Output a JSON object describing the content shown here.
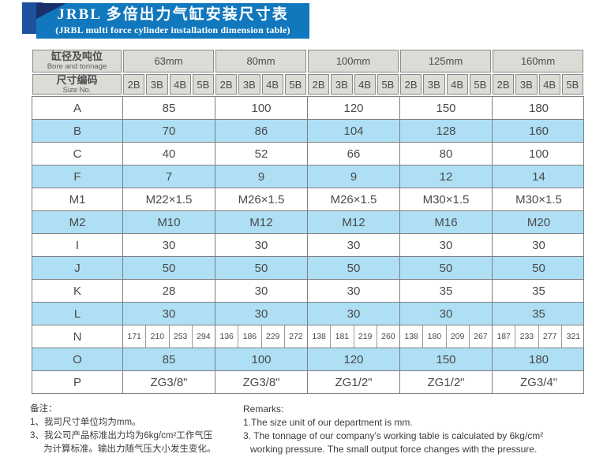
{
  "title": {
    "zh": "JRBL 多倍出力气缸安装尺寸表",
    "en": "(JRBL multi force cylinder installation dimension table)"
  },
  "table": {
    "corner_zh": "缸径及吨位",
    "corner_en": "Bore and tonnage",
    "size_no_zh": "尺寸编码",
    "size_no_en": "Size No.",
    "bores": [
      "63mm",
      "80mm",
      "100mm",
      "125mm",
      "160mm"
    ],
    "size_codes": [
      "2B",
      "3B",
      "4B",
      "5B"
    ],
    "rows": [
      {
        "label": "A",
        "type": "merged",
        "blue": false,
        "values": [
          "85",
          "100",
          "120",
          "150",
          "180"
        ]
      },
      {
        "label": "B",
        "type": "merged",
        "blue": true,
        "values": [
          "70",
          "86",
          "104",
          "128",
          "160"
        ]
      },
      {
        "label": "C",
        "type": "merged",
        "blue": false,
        "values": [
          "40",
          "52",
          "66",
          "80",
          "100"
        ]
      },
      {
        "label": "F",
        "type": "merged",
        "blue": true,
        "values": [
          "7",
          "9",
          "9",
          "12",
          "14"
        ]
      },
      {
        "label": "M1",
        "type": "merged",
        "blue": false,
        "values": [
          "M22×1.5",
          "M26×1.5",
          "M26×1.5",
          "M30×1.5",
          "M30×1.5"
        ]
      },
      {
        "label": "M2",
        "type": "merged",
        "blue": true,
        "values": [
          "M10",
          "M12",
          "M12",
          "M16",
          "M20"
        ]
      },
      {
        "label": "I",
        "type": "merged",
        "blue": false,
        "values": [
          "30",
          "30",
          "30",
          "30",
          "30"
        ]
      },
      {
        "label": "J",
        "type": "merged",
        "blue": true,
        "values": [
          "50",
          "50",
          "50",
          "50",
          "50"
        ]
      },
      {
        "label": "K",
        "type": "merged",
        "blue": false,
        "values": [
          "28",
          "30",
          "30",
          "35",
          "35"
        ]
      },
      {
        "label": "L",
        "type": "merged",
        "blue": true,
        "values": [
          "30",
          "30",
          "30",
          "30",
          "35"
        ]
      },
      {
        "label": "N",
        "type": "per-code",
        "blue": false,
        "values": [
          [
            "171",
            "210",
            "253",
            "294"
          ],
          [
            "136",
            "186",
            "229",
            "272"
          ],
          [
            "138",
            "181",
            "219",
            "260"
          ],
          [
            "138",
            "180",
            "209",
            "267"
          ],
          [
            "187",
            "233",
            "277",
            "321"
          ]
        ]
      },
      {
        "label": "O",
        "type": "merged",
        "blue": true,
        "values": [
          "85",
          "100",
          "120",
          "150",
          "180"
        ]
      },
      {
        "label": "P",
        "type": "merged",
        "blue": false,
        "values": [
          "ZG3/8\"",
          "ZG3/8\"",
          "ZG1/2\"",
          "ZG1/2\"",
          "ZG3/4\""
        ]
      }
    ]
  },
  "notes_zh": {
    "lines": [
      {
        "text": "备注：",
        "indent": false
      },
      {
        "text": "1、我司尺寸单位均为mm。",
        "indent": false
      },
      {
        "text": "3、我公司产品标准出力均为6kg/cm²工作气压",
        "indent": false
      },
      {
        "text": "为计算标准。输出力随气压大小发生变化。",
        "indent": true
      }
    ]
  },
  "notes_en": {
    "lines": [
      {
        "text": "Remarks:",
        "indent": false
      },
      {
        "text": "1.The size unit of our department is mm.",
        "indent": false
      },
      {
        "text": "3. The tonnage of our company's working table is calculated by 6kg/cm²",
        "indent": false
      },
      {
        "text": "working pressure. The small output force changes with the pressure.",
        "indent": true
      }
    ]
  },
  "colors": {
    "banner_blue": "#1278bd",
    "ribbon_navy": "#19306b",
    "ribbon_square": "#1e52a0",
    "header_gray": "#dcdcd6",
    "row_blue": "#aedff5",
    "border_gray": "#7f7f7f",
    "text_gray": "#4a4a4a"
  }
}
